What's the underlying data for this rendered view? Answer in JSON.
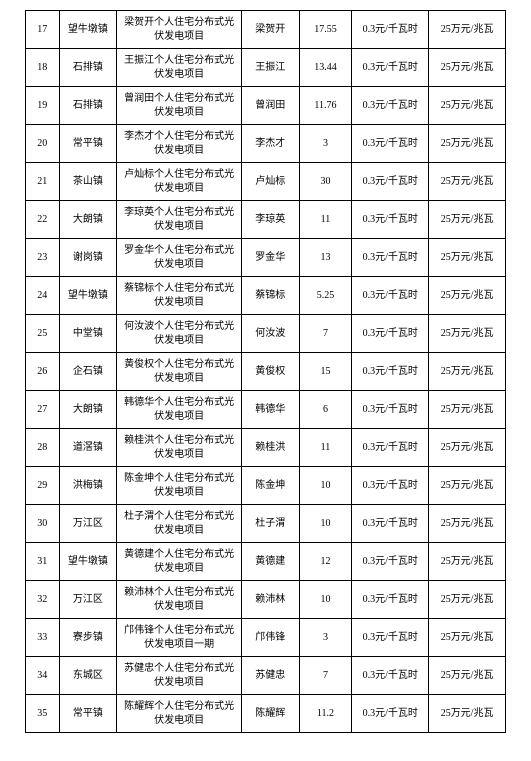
{
  "table": {
    "columns": [
      "idx",
      "town",
      "project",
      "owner",
      "capacity",
      "rate",
      "subsidy"
    ],
    "rate_text": "0.3元/千瓦时",
    "subsidy_text": "25万元/兆瓦",
    "rows": [
      {
        "idx": "17",
        "town": "望牛墩镇",
        "project": "梁贺开个人住宅分布式光伏发电项目",
        "owner": "梁贺开",
        "capacity": "17.55"
      },
      {
        "idx": "18",
        "town": "石排镇",
        "project": "王振江个人住宅分布式光伏发电项目",
        "owner": "王振江",
        "capacity": "13.44"
      },
      {
        "idx": "19",
        "town": "石排镇",
        "project": "曾润田个人住宅分布式光伏发电项目",
        "owner": "曾润田",
        "capacity": "11.76"
      },
      {
        "idx": "20",
        "town": "常平镇",
        "project": "李杰才个人住宅分布式光伏发电项目",
        "owner": "李杰才",
        "capacity": "3"
      },
      {
        "idx": "21",
        "town": "茶山镇",
        "project": "卢灿标个人住宅分布式光伏发电项目",
        "owner": "卢灿标",
        "capacity": "30"
      },
      {
        "idx": "22",
        "town": "大朗镇",
        "project": "李琼英个人住宅分布式光伏发电项目",
        "owner": "李琼英",
        "capacity": "11"
      },
      {
        "idx": "23",
        "town": "谢岗镇",
        "project": "罗金华个人住宅分布式光伏发电项目",
        "owner": "罗金华",
        "capacity": "13"
      },
      {
        "idx": "24",
        "town": "望牛墩镇",
        "project": "蔡锦标个人住宅分布式光伏发电项目",
        "owner": "蔡锦标",
        "capacity": "5.25"
      },
      {
        "idx": "25",
        "town": "中堂镇",
        "project": "何汝波个人住宅分布式光伏发电项目",
        "owner": "何汝波",
        "capacity": "7"
      },
      {
        "idx": "26",
        "town": "企石镇",
        "project": "黄俊权个人住宅分布式光伏发电项目",
        "owner": "黄俊权",
        "capacity": "15"
      },
      {
        "idx": "27",
        "town": "大朗镇",
        "project": "韩德华个人住宅分布式光伏发电项目",
        "owner": "韩德华",
        "capacity": "6"
      },
      {
        "idx": "28",
        "town": "道滘镇",
        "project": "赖桂洪个人住宅分布式光伏发电项目",
        "owner": "赖桂洪",
        "capacity": "11"
      },
      {
        "idx": "29",
        "town": "洪梅镇",
        "project": "陈金坤个人住宅分布式光伏发电项目",
        "owner": "陈金坤",
        "capacity": "10"
      },
      {
        "idx": "30",
        "town": "万江区",
        "project": "杜子渭个人住宅分布式光伏发电项目",
        "owner": "杜子渭",
        "capacity": "10"
      },
      {
        "idx": "31",
        "town": "望牛墩镇",
        "project": "黄德建个人住宅分布式光伏发电项目",
        "owner": "黄德建",
        "capacity": "12"
      },
      {
        "idx": "32",
        "town": "万江区",
        "project": "赖沛林个人住宅分布式光伏发电项目",
        "owner": "赖沛林",
        "capacity": "10"
      },
      {
        "idx": "33",
        "town": "寮步镇",
        "project": "邝伟锋个人住宅分布式光伏发电项目一期",
        "owner": "邝伟锋",
        "capacity": "3"
      },
      {
        "idx": "34",
        "town": "东城区",
        "project": "苏健忠个人住宅分布式光伏发电项目",
        "owner": "苏健忠",
        "capacity": "7"
      },
      {
        "idx": "35",
        "town": "常平镇",
        "project": "陈耀辉个人住宅分布式光伏发电项目",
        "owner": "陈耀辉",
        "capacity": "11.2"
      }
    ]
  }
}
